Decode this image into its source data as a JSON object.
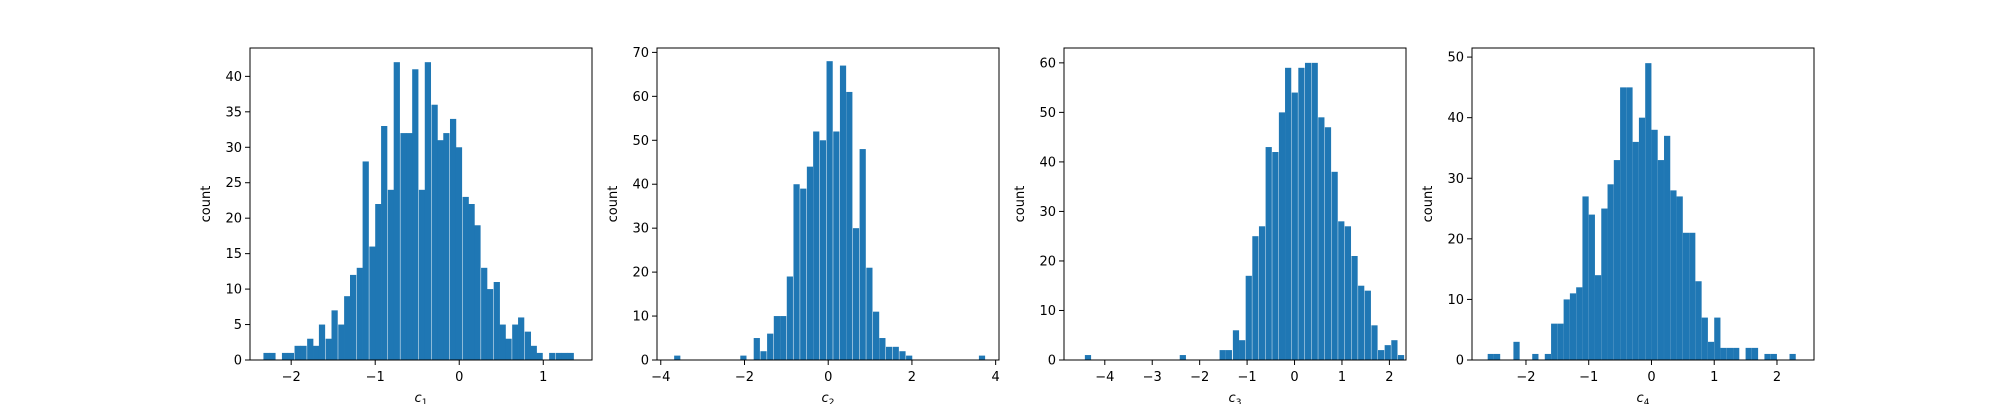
{
  "chart_data": [
    {
      "type": "bar",
      "xlabel": "c",
      "xlabel_sub": "1",
      "ylabel": "count",
      "xlim": [
        -2.49,
        1.58
      ],
      "ylim": [
        0,
        44
      ],
      "xticks": [
        -2,
        -1,
        0,
        1
      ],
      "yticks": [
        0,
        5,
        10,
        15,
        20,
        25,
        30,
        35,
        40
      ],
      "bin_width": 0.0741,
      "bins": [
        [
          -2.33,
          1
        ],
        [
          -2.26,
          1
        ],
        [
          -2.11,
          1
        ],
        [
          -2.04,
          1
        ],
        [
          -1.96,
          2
        ],
        [
          -1.89,
          2
        ],
        [
          -1.81,
          3
        ],
        [
          -1.74,
          2
        ],
        [
          -1.67,
          5
        ],
        [
          -1.59,
          3
        ],
        [
          -1.52,
          7
        ],
        [
          -1.44,
          5
        ],
        [
          -1.37,
          9
        ],
        [
          -1.3,
          12
        ],
        [
          -1.22,
          13
        ],
        [
          -1.15,
          28
        ],
        [
          -1.07,
          16
        ],
        [
          -1.0,
          22
        ],
        [
          -0.93,
          33
        ],
        [
          -0.85,
          24
        ],
        [
          -0.78,
          42
        ],
        [
          -0.7,
          32
        ],
        [
          -0.63,
          32
        ],
        [
          -0.56,
          41
        ],
        [
          -0.48,
          24
        ],
        [
          -0.41,
          42
        ],
        [
          -0.33,
          36
        ],
        [
          -0.26,
          31
        ],
        [
          -0.19,
          32
        ],
        [
          -0.11,
          34
        ],
        [
          -0.04,
          30
        ],
        [
          0.04,
          23
        ],
        [
          0.11,
          22
        ],
        [
          0.18,
          19
        ],
        [
          0.26,
          13
        ],
        [
          0.33,
          10
        ],
        [
          0.41,
          11
        ],
        [
          0.48,
          5
        ],
        [
          0.55,
          3
        ],
        [
          0.63,
          5
        ],
        [
          0.7,
          6
        ],
        [
          0.78,
          4
        ],
        [
          0.85,
          2
        ],
        [
          0.92,
          1
        ],
        [
          1.07,
          1
        ],
        [
          1.15,
          1
        ],
        [
          1.22,
          1
        ],
        [
          1.29,
          1
        ]
      ]
    },
    {
      "type": "bar",
      "xlabel": "c",
      "xlabel_sub": "2",
      "ylabel": "count",
      "xlim": [
        -4.09,
        4.08
      ],
      "ylim": [
        0,
        71
      ],
      "xticks": [
        -4,
        -2,
        0,
        2,
        4
      ],
      "yticks": [
        0,
        10,
        20,
        30,
        40,
        50,
        60,
        70
      ],
      "bin_width": 0.148,
      "bins": [
        [
          -3.68,
          1
        ],
        [
          -2.1,
          1
        ],
        [
          -1.78,
          5
        ],
        [
          -1.62,
          2
        ],
        [
          -1.46,
          6
        ],
        [
          -1.3,
          10
        ],
        [
          -1.15,
          10
        ],
        [
          -0.99,
          19
        ],
        [
          -0.83,
          40
        ],
        [
          -0.67,
          39
        ],
        [
          -0.51,
          44
        ],
        [
          -0.36,
          52
        ],
        [
          -0.2,
          50
        ],
        [
          -0.04,
          68
        ],
        [
          0.12,
          52
        ],
        [
          0.28,
          67
        ],
        [
          0.43,
          61
        ],
        [
          0.59,
          30
        ],
        [
          0.75,
          48
        ],
        [
          0.91,
          21
        ],
        [
          1.07,
          11
        ],
        [
          1.22,
          5
        ],
        [
          1.38,
          3
        ],
        [
          1.54,
          3
        ],
        [
          1.7,
          2
        ],
        [
          1.86,
          1
        ],
        [
          3.6,
          1
        ]
      ]
    },
    {
      "type": "bar",
      "xlabel": "c",
      "xlabel_sub": "3",
      "ylabel": "count",
      "xlim": [
        -4.86,
        2.35
      ],
      "ylim": [
        0,
        63
      ],
      "xticks": [
        -4,
        -3,
        -2,
        -1,
        0,
        1,
        2
      ],
      "yticks": [
        0,
        10,
        20,
        30,
        40,
        50,
        60
      ],
      "bin_width": 0.131,
      "bins": [
        [
          -4.42,
          1
        ],
        [
          -2.42,
          1
        ],
        [
          -1.58,
          2
        ],
        [
          -1.45,
          2
        ],
        [
          -1.3,
          6
        ],
        [
          -1.17,
          4
        ],
        [
          -1.03,
          17
        ],
        [
          -0.89,
          25
        ],
        [
          -0.75,
          27
        ],
        [
          -0.61,
          43
        ],
        [
          -0.47,
          42
        ],
        [
          -0.33,
          50
        ],
        [
          -0.2,
          59
        ],
        [
          -0.06,
          54
        ],
        [
          0.08,
          59
        ],
        [
          0.22,
          60
        ],
        [
          0.36,
          60
        ],
        [
          0.5,
          49
        ],
        [
          0.64,
          47
        ],
        [
          0.78,
          38
        ],
        [
          0.92,
          28
        ],
        [
          1.06,
          27
        ],
        [
          1.2,
          21
        ],
        [
          1.34,
          15
        ],
        [
          1.48,
          14
        ],
        [
          1.62,
          7
        ],
        [
          1.76,
          2
        ],
        [
          1.9,
          3
        ],
        [
          2.04,
          4
        ],
        [
          2.18,
          1
        ]
      ]
    },
    {
      "type": "bar",
      "xlabel": "c",
      "xlabel_sub": "4",
      "ylabel": "count",
      "xlim": [
        -2.86,
        2.59
      ],
      "ylim": [
        0,
        51.5
      ],
      "xticks": [
        -2,
        -1,
        0,
        1,
        2
      ],
      "yticks": [
        0,
        10,
        20,
        30,
        40,
        50
      ],
      "bin_width": 0.0992,
      "bins": [
        [
          -2.61,
          1
        ],
        [
          -2.51,
          1
        ],
        [
          -2.2,
          3
        ],
        [
          -1.9,
          1
        ],
        [
          -1.7,
          1
        ],
        [
          -1.6,
          6
        ],
        [
          -1.5,
          6
        ],
        [
          -1.4,
          10
        ],
        [
          -1.3,
          11
        ],
        [
          -1.2,
          12
        ],
        [
          -1.1,
          27
        ],
        [
          -1.0,
          24
        ],
        [
          -0.9,
          14
        ],
        [
          -0.8,
          25
        ],
        [
          -0.7,
          29
        ],
        [
          -0.6,
          33
        ],
        [
          -0.5,
          45
        ],
        [
          -0.4,
          45
        ],
        [
          -0.3,
          36
        ],
        [
          -0.2,
          40
        ],
        [
          -0.1,
          49
        ],
        [
          0.0,
          38
        ],
        [
          0.1,
          33
        ],
        [
          0.2,
          37
        ],
        [
          0.3,
          28
        ],
        [
          0.4,
          27
        ],
        [
          0.5,
          21
        ],
        [
          0.6,
          21
        ],
        [
          0.7,
          13
        ],
        [
          0.8,
          7
        ],
        [
          0.9,
          3
        ],
        [
          1.0,
          7
        ],
        [
          1.1,
          2
        ],
        [
          1.2,
          2
        ],
        [
          1.3,
          2
        ],
        [
          1.5,
          2
        ],
        [
          1.6,
          2
        ],
        [
          1.8,
          1
        ],
        [
          1.9,
          1
        ],
        [
          2.2,
          1
        ]
      ]
    }
  ]
}
